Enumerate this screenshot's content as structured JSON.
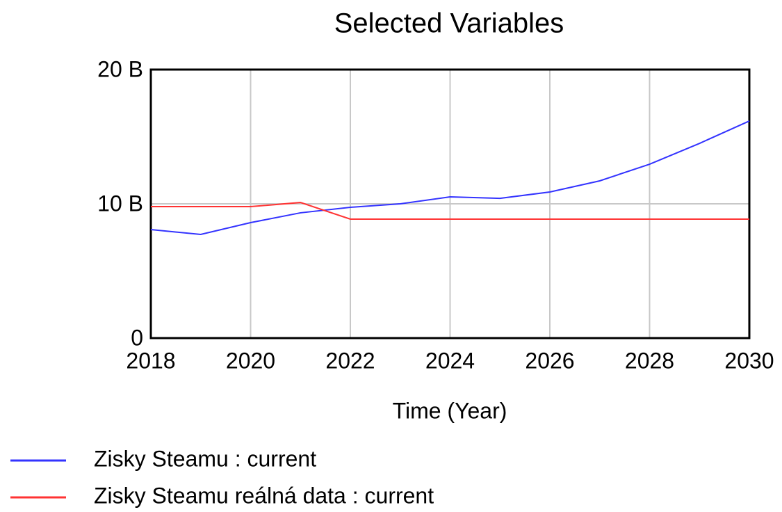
{
  "chart_data": {
    "type": "line",
    "title": "Selected Variables",
    "x_label": "Time (Year)",
    "x": [
      2018,
      2019,
      2020,
      2021,
      2022,
      2023,
      2024,
      2025,
      2026,
      2027,
      2028,
      2029,
      2030
    ],
    "series": [
      {
        "name": "Zisky Steamu : current",
        "color": "#3333ff",
        "values": [
          8.08,
          7.72,
          8.6,
          9.33,
          9.74,
          10.0,
          10.52,
          10.41,
          10.88,
          11.71,
          12.95,
          14.5,
          16.17
        ]
      },
      {
        "name": "Zisky Steamu reálná data : current",
        "color": "#ff3333",
        "values": [
          9.79,
          9.79,
          9.79,
          10.1,
          8.86,
          8.86,
          8.86,
          8.86,
          8.86,
          8.86,
          8.86,
          8.86,
          8.86
        ]
      }
    ],
    "xlim": [
      2018,
      2030
    ],
    "xticks": [
      2018,
      2020,
      2022,
      2024,
      2026,
      2028,
      2030
    ],
    "ylim": [
      0,
      20
    ],
    "yticks": [
      0,
      {
        "value": 10,
        "label": "10 B"
      },
      {
        "value": 20,
        "label": "20 B"
      }
    ],
    "grid": true,
    "legend": "bottom-left"
  }
}
